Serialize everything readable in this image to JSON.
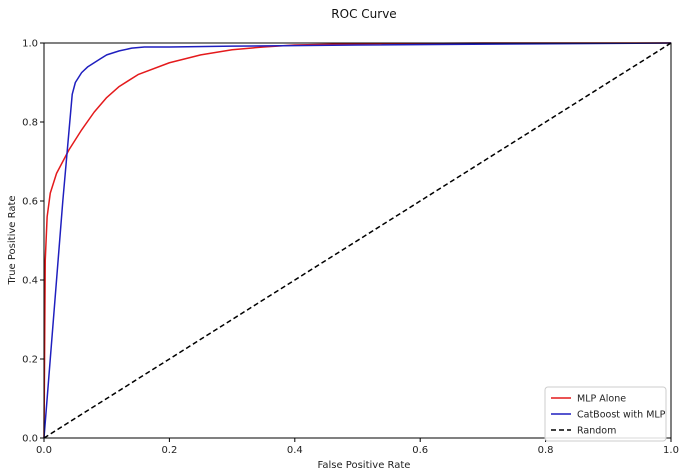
{
  "chart_data": {
    "type": "line",
    "title": "ROC Curve",
    "xlabel": "False Positive Rate",
    "ylabel": "True Positive Rate",
    "xlim": [
      0.0,
      1.0
    ],
    "ylim": [
      0.0,
      1.0
    ],
    "xticks": [
      "0.0",
      "0.2",
      "0.4",
      "0.6",
      "0.8",
      "1.0"
    ],
    "yticks": [
      "0.0",
      "0.2",
      "0.4",
      "0.6",
      "0.8",
      "1.0"
    ],
    "grid": false,
    "legend_position": "bottom-right",
    "series": [
      {
        "name": "MLP Alone",
        "color": "#e41a1c",
        "style": "solid",
        "x": [
          0.0,
          0.002,
          0.005,
          0.01,
          0.02,
          0.03,
          0.04,
          0.05,
          0.06,
          0.08,
          0.1,
          0.12,
          0.15,
          0.2,
          0.25,
          0.3,
          0.35,
          0.4,
          0.5,
          0.7,
          1.0
        ],
        "y": [
          0.0,
          0.45,
          0.56,
          0.62,
          0.67,
          0.7,
          0.73,
          0.755,
          0.78,
          0.825,
          0.862,
          0.89,
          0.92,
          0.95,
          0.97,
          0.983,
          0.99,
          0.995,
          0.998,
          1.0,
          1.0
        ]
      },
      {
        "name": "CatBoost with MLP",
        "color": "#1f1fbf",
        "style": "solid",
        "x": [
          0.0,
          0.01,
          0.02,
          0.03,
          0.04,
          0.045,
          0.05,
          0.06,
          0.07,
          0.08,
          0.09,
          0.1,
          0.12,
          0.14,
          0.16,
          0.2,
          0.3,
          0.5,
          1.0
        ],
        "y": [
          0.0,
          0.2,
          0.4,
          0.6,
          0.78,
          0.87,
          0.9,
          0.925,
          0.94,
          0.95,
          0.96,
          0.97,
          0.98,
          0.987,
          0.99,
          0.99,
          0.992,
          0.995,
          1.0
        ]
      },
      {
        "name": "Random",
        "color": "#000000",
        "style": "dashed",
        "x": [
          0.0,
          1.0
        ],
        "y": [
          0.0,
          1.0
        ]
      }
    ]
  }
}
